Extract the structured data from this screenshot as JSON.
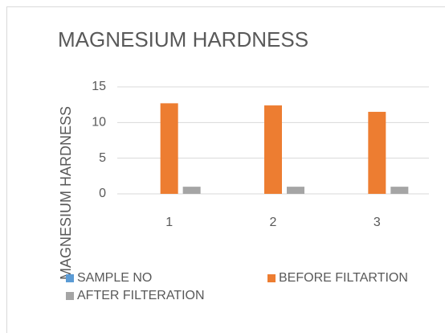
{
  "chart_data": {
    "type": "bar",
    "title": "MAGNESIUM HARDNESS",
    "y_label": "MAGNESIUM HARDNESS",
    "categories": [
      "1",
      "2",
      "3"
    ],
    "series": [
      {
        "name": "SAMPLE NO",
        "color": "#5b9bd5",
        "values": [
          null,
          null,
          null
        ]
      },
      {
        "name": "BEFORE FILTARTION",
        "color": "#ed7d31",
        "values": [
          12.7,
          12.4,
          11.5
        ]
      },
      {
        "name": "AFTER FILTERATION",
        "color": "#a5a5a5",
        "values": [
          1,
          1,
          1
        ]
      }
    ],
    "ylim": [
      0,
      15
    ],
    "yticks": [
      0,
      5,
      10,
      15
    ],
    "grid": true,
    "legend": "bottom"
  }
}
